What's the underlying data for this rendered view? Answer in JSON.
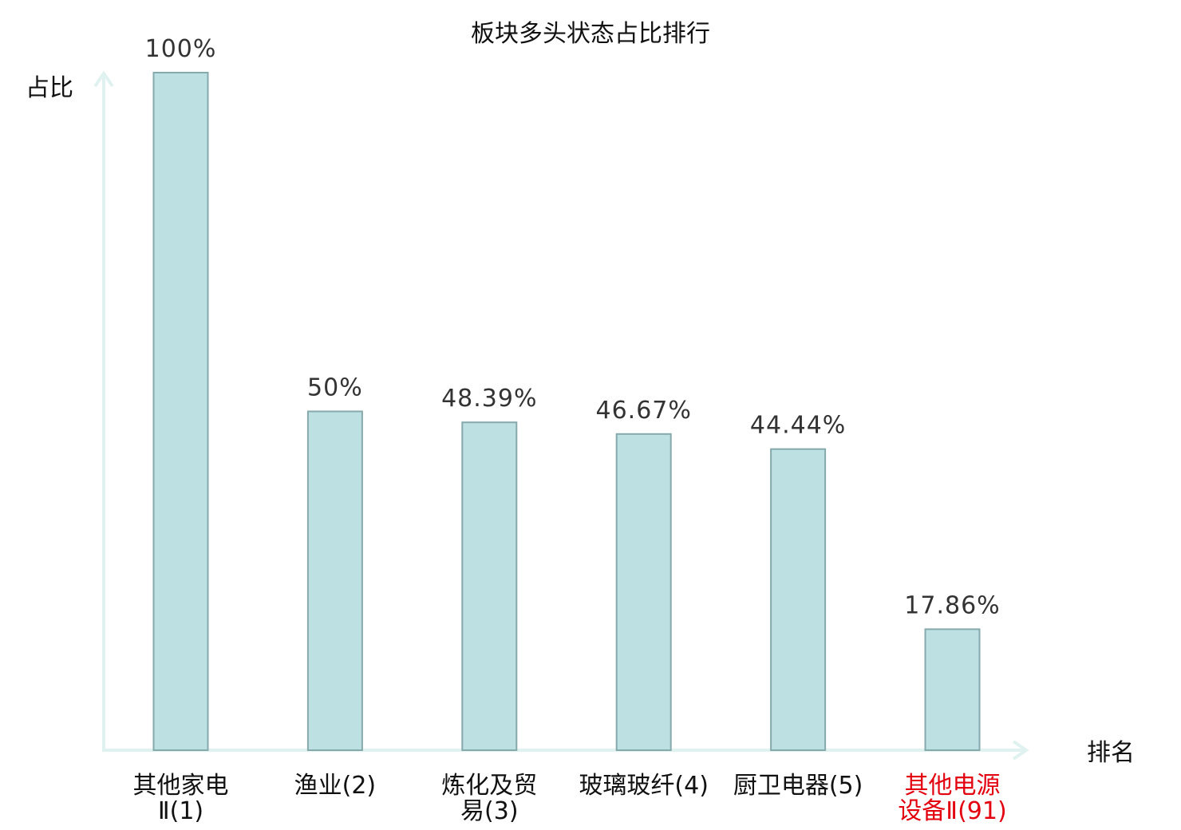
{
  "chart_data": {
    "type": "bar",
    "title": "板块多头状态占比排行",
    "ylabel": "占比",
    "xlabel": "排名",
    "ylim": [
      0,
      100
    ],
    "categories": [
      [
        "其他家电",
        "Ⅱ(1)"
      ],
      [
        "渔业(2)"
      ],
      [
        "炼化及贸",
        "易(3)"
      ],
      [
        "玻璃玻纤(4)"
      ],
      [
        "厨卫电器(5)"
      ],
      [
        "其他电源",
        "设备Ⅱ(91)"
      ]
    ],
    "values": [
      100,
      50,
      48.39,
      46.67,
      44.44,
      17.86
    ],
    "value_labels": [
      "100%",
      "50%",
      "48.39%",
      "46.67%",
      "44.44%",
      "17.86%"
    ],
    "highlight_index": 5,
    "colors": {
      "bar_fill": "#bde0e3",
      "bar_stroke": "#86a9ac",
      "axis": "#e0f2ef",
      "label": "#111111",
      "highlight": "#e3000f"
    }
  }
}
